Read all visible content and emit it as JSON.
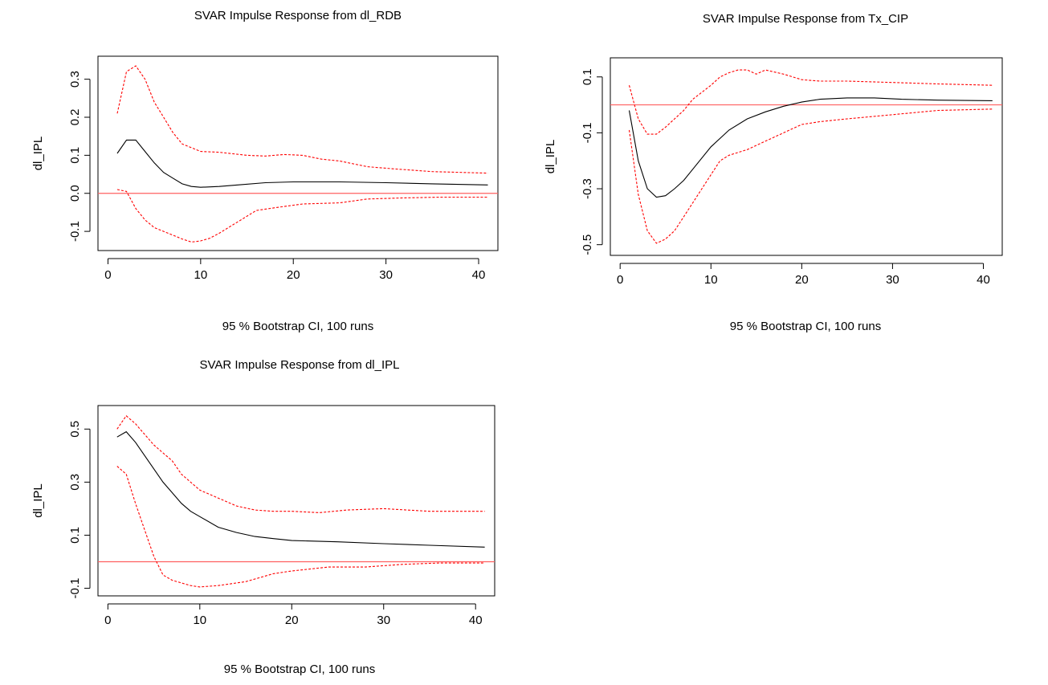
{
  "colors": {
    "response": "#000000",
    "ci": "#ff0000",
    "zero_line": "#ff6060"
  },
  "chart_data": [
    {
      "type": "line",
      "title": "SVAR Impulse Response from dl_RDB",
      "xlabel": "95 % Bootstrap CI,  100 runs",
      "ylabel": "dl_IPL",
      "xlim": [
        0,
        41
      ],
      "ylim": [
        -0.13,
        0.34
      ],
      "xticks": [
        "0",
        "10",
        "20",
        "30",
        "40"
      ],
      "yticks": [
        "-0.1",
        "0.0",
        "0.1",
        "0.2",
        "0.3"
      ],
      "ytick_values": [
        -0.1,
        0.0,
        0.1,
        0.2,
        0.3
      ],
      "xtick_values": [
        0,
        10,
        20,
        30,
        40
      ],
      "reference_line": 0,
      "series": [
        {
          "role": "response",
          "style": "solid",
          "x": [
            1,
            2,
            3,
            4,
            5,
            6,
            7,
            8,
            9,
            10,
            12,
            14,
            17,
            20,
            25,
            30,
            35,
            41
          ],
          "y": [
            0.105,
            0.14,
            0.14,
            0.11,
            0.08,
            0.055,
            0.04,
            0.025,
            0.018,
            0.016,
            0.018,
            0.022,
            0.028,
            0.03,
            0.03,
            0.028,
            0.025,
            0.022
          ]
        },
        {
          "role": "upper_ci",
          "style": "dashed",
          "x": [
            1,
            2,
            3,
            4,
            5,
            6,
            7,
            8,
            9,
            10,
            12,
            15,
            17,
            19,
            21,
            23,
            25,
            28,
            31,
            35,
            41
          ],
          "y": [
            0.21,
            0.32,
            0.335,
            0.3,
            0.24,
            0.2,
            0.16,
            0.13,
            0.12,
            0.11,
            0.108,
            0.1,
            0.098,
            0.102,
            0.1,
            0.09,
            0.085,
            0.07,
            0.064,
            0.057,
            0.053
          ]
        },
        {
          "role": "lower_ci",
          "style": "dashed",
          "x": [
            1,
            2,
            3,
            4,
            5,
            6,
            7,
            8,
            9,
            10,
            11,
            12,
            14,
            16,
            18,
            21,
            25,
            28,
            32,
            36,
            41
          ],
          "y": [
            0.01,
            0.005,
            -0.04,
            -0.07,
            -0.09,
            -0.1,
            -0.11,
            -0.12,
            -0.128,
            -0.125,
            -0.118,
            -0.105,
            -0.075,
            -0.045,
            -0.038,
            -0.028,
            -0.025,
            -0.015,
            -0.012,
            -0.01,
            -0.01
          ]
        }
      ]
    },
    {
      "type": "line",
      "title": "SVAR Impulse Response from Tx_CIP",
      "xlabel": "95 % Bootstrap CI,  100 runs",
      "ylabel": "dl_IPL",
      "xlim": [
        0,
        41
      ],
      "ylim": [
        -0.51,
        0.14
      ],
      "xticks": [
        "0",
        "10",
        "20",
        "30",
        "40"
      ],
      "yticks": [
        "-0.5",
        "-0.3",
        "-0.1",
        "0.1"
      ],
      "ytick_values": [
        -0.5,
        -0.3,
        -0.1,
        0.1
      ],
      "xtick_values": [
        0,
        10,
        20,
        30,
        40
      ],
      "reference_line": 0,
      "series": [
        {
          "role": "response",
          "style": "solid",
          "x": [
            1,
            2,
            3,
            4,
            5,
            6,
            7,
            8,
            10,
            12,
            14,
            16,
            18,
            20,
            22,
            25,
            28,
            31,
            35,
            41
          ],
          "y": [
            -0.02,
            -0.2,
            -0.3,
            -0.33,
            -0.325,
            -0.3,
            -0.27,
            -0.23,
            -0.15,
            -0.09,
            -0.05,
            -0.025,
            -0.005,
            0.01,
            0.02,
            0.025,
            0.025,
            0.02,
            0.017,
            0.015
          ]
        },
        {
          "role": "upper_ci",
          "style": "dashed",
          "x": [
            1,
            2,
            3,
            4,
            5,
            6,
            7,
            8,
            10,
            11,
            12,
            13,
            14,
            15,
            16,
            18,
            20,
            22,
            25,
            30,
            35,
            41
          ],
          "y": [
            0.07,
            -0.05,
            -0.105,
            -0.105,
            -0.08,
            -0.05,
            -0.02,
            0.02,
            0.07,
            0.1,
            0.115,
            0.125,
            0.125,
            0.11,
            0.125,
            0.11,
            0.09,
            0.085,
            0.085,
            0.08,
            0.075,
            0.07
          ]
        },
        {
          "role": "lower_ci",
          "style": "dashed",
          "x": [
            1,
            2,
            3,
            4,
            5,
            6,
            7,
            8,
            9,
            10,
            11,
            12,
            14,
            16,
            18,
            20,
            22,
            25,
            30,
            35,
            41
          ],
          "y": [
            -0.09,
            -0.32,
            -0.45,
            -0.495,
            -0.48,
            -0.45,
            -0.4,
            -0.35,
            -0.3,
            -0.25,
            -0.2,
            -0.18,
            -0.16,
            -0.13,
            -0.1,
            -0.07,
            -0.06,
            -0.05,
            -0.035,
            -0.02,
            -0.015
          ]
        }
      ]
    },
    {
      "type": "line",
      "title": "SVAR Impulse Response from dl_IPL",
      "xlabel": "95 % Bootstrap CI,  100 runs",
      "ylabel": "dl_IPL",
      "xlim": [
        0,
        41
      ],
      "ylim": [
        -0.1,
        0.56
      ],
      "xticks": [
        "0",
        "10",
        "20",
        "30",
        "40"
      ],
      "yticks": [
        "-0.1",
        "0.1",
        "0.3",
        "0.5"
      ],
      "ytick_values": [
        -0.1,
        0.1,
        0.3,
        0.5
      ],
      "xtick_values": [
        0,
        10,
        20,
        30,
        40
      ],
      "reference_line": 0,
      "series": [
        {
          "role": "response",
          "style": "solid",
          "x": [
            1,
            2,
            3,
            4,
            5,
            6,
            7,
            8,
            9,
            10,
            12,
            14,
            16,
            18,
            20,
            25,
            30,
            35,
            41
          ],
          "y": [
            0.47,
            0.49,
            0.45,
            0.4,
            0.35,
            0.3,
            0.26,
            0.22,
            0.19,
            0.17,
            0.13,
            0.11,
            0.095,
            0.087,
            0.08,
            0.075,
            0.068,
            0.062,
            0.055
          ]
        },
        {
          "role": "upper_ci",
          "style": "dashed",
          "x": [
            1,
            2,
            3,
            4,
            5,
            6,
            7,
            8,
            9,
            10,
            12,
            14,
            16,
            18,
            20,
            23,
            26,
            30,
            35,
            41
          ],
          "y": [
            0.5,
            0.55,
            0.52,
            0.48,
            0.44,
            0.41,
            0.38,
            0.33,
            0.3,
            0.27,
            0.24,
            0.21,
            0.195,
            0.19,
            0.19,
            0.185,
            0.195,
            0.2,
            0.19,
            0.19
          ]
        },
        {
          "role": "lower_ci",
          "style": "dashed",
          "x": [
            1,
            2,
            3,
            4,
            5,
            6,
            7,
            8,
            9,
            10,
            12,
            15,
            18,
            20,
            24,
            28,
            32,
            36,
            41
          ],
          "y": [
            0.36,
            0.33,
            0.22,
            0.12,
            0.02,
            -0.05,
            -0.07,
            -0.08,
            -0.09,
            -0.095,
            -0.09,
            -0.075,
            -0.045,
            -0.035,
            -0.02,
            -0.02,
            -0.01,
            -0.005,
            -0.005
          ]
        }
      ]
    }
  ]
}
